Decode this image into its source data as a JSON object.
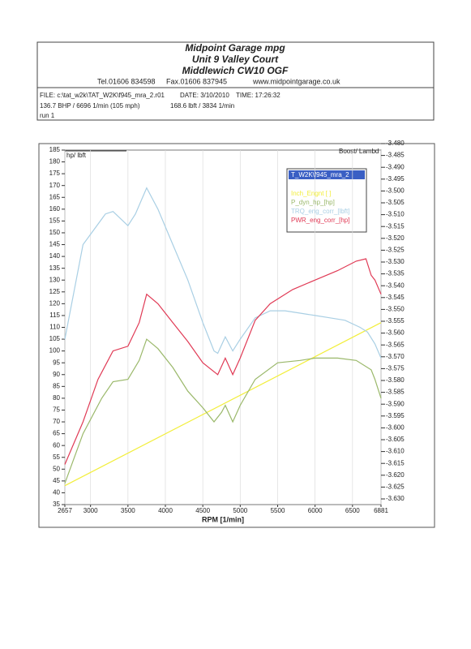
{
  "header": {
    "name": "Midpoint Garage  mpg",
    "address1": "Unit 9 Valley Court",
    "address2": "Middlewich CW10 OGF",
    "tel": "Tel.01606 834598",
    "fax": "Fax.01606 837945",
    "web": "www.midpointgarage.co.uk",
    "file": "FILE: c:\\tat_w2k\\TAT_W2K\\f945_mra_2.r01",
    "date": "DATE: 3/10/2010",
    "time": "TIME: 17:26:32",
    "peak_power": "136.7 BHP / 6696 1/min (105 mph)",
    "peak_torque": "168.6 lbft / 3834 1/min",
    "run": "run  1"
  },
  "chart_data": {
    "type": "line",
    "ylabel": "hp/ lbft",
    "y2label": "Boost/ Lambd",
    "xlabel": "RPM  [1/min]",
    "legend_title": "T_W2K\\f945_mra_2",
    "xlim": [
      2657,
      6881
    ],
    "xticks": [
      2657,
      3000,
      3500,
      4000,
      4500,
      5000,
      5500,
      6000,
      6500,
      6881
    ],
    "ylim": [
      35,
      185
    ],
    "yticks": [
      35,
      40,
      45,
      50,
      55,
      60,
      65,
      70,
      75,
      80,
      85,
      90,
      95,
      100,
      105,
      110,
      115,
      120,
      125,
      130,
      135,
      140,
      145,
      150,
      155,
      160,
      165,
      170,
      175,
      180,
      185
    ],
    "y2lim": [
      -3.63,
      -3.48
    ],
    "y2ticks": [
      {
        "value": -3.48,
        "label": "-3.480"
      },
      {
        "value": -3.485,
        "label": "-3.485"
      },
      {
        "value": -3.49,
        "label": "-3.490"
      },
      {
        "value": -3.495,
        "label": "-3.495"
      },
      {
        "value": -3.5,
        "label": "-3.500"
      },
      {
        "value": -3.505,
        "label": "-3.505"
      },
      {
        "value": -3.51,
        "label": "-3.510"
      },
      {
        "value": -3.515,
        "label": "-3.515"
      },
      {
        "value": -3.52,
        "label": "-3.520"
      },
      {
        "value": -3.525,
        "label": "-3.525"
      },
      {
        "value": -3.53,
        "label": "-3.530"
      },
      {
        "value": -3.535,
        "label": "-3.535"
      },
      {
        "value": -3.54,
        "label": "-3.540"
      },
      {
        "value": -3.545,
        "label": "-3.545"
      },
      {
        "value": -3.55,
        "label": "-3.550"
      },
      {
        "value": -3.555,
        "label": "-3.555"
      },
      {
        "value": -3.56,
        "label": "-3.560"
      },
      {
        "value": -3.565,
        "label": "-3.565"
      },
      {
        "value": -3.57,
        "label": "-3.570"
      },
      {
        "value": -3.575,
        "label": "-3.575"
      },
      {
        "value": -3.58,
        "label": "-3.580"
      },
      {
        "value": -3.585,
        "label": "-3.585"
      },
      {
        "value": -3.59,
        "label": "-3.590"
      },
      {
        "value": -3.595,
        "label": "-3.595"
      },
      {
        "value": -3.6,
        "label": "-3.600"
      },
      {
        "value": -3.605,
        "label": "-3.605"
      },
      {
        "value": -3.61,
        "label": "-3.610"
      },
      {
        "value": -3.615,
        "label": "-3.615"
      },
      {
        "value": -3.62,
        "label": "-3.620"
      },
      {
        "value": -3.625,
        "label": "-3.625"
      },
      {
        "value": -3.63,
        "label": "-3.630"
      }
    ],
    "grid": true,
    "series": [
      {
        "name": "Inch_Engnt [ ]",
        "color": "#f2ee3a",
        "x": [
          2657,
          6881
        ],
        "values": [
          43,
          112
        ]
      },
      {
        "name": "P_dyn_hp_[hp]",
        "color": "#9ab86a",
        "x": [
          2657,
          2900,
          3150,
          3300,
          3500,
          3650,
          3750,
          3900,
          4100,
          4300,
          4500,
          4650,
          4750,
          4800,
          4900,
          5000,
          5200,
          5500,
          5800,
          6000,
          6300,
          6550,
          6750,
          6800,
          6881
        ],
        "values": [
          44,
          65,
          80,
          87,
          88,
          96,
          105,
          101,
          93,
          83,
          76,
          70,
          74,
          77,
          70,
          77,
          88,
          95,
          96,
          97,
          97,
          96,
          92,
          88,
          80
        ]
      },
      {
        "name": "TRQ_eng_corr_[lbft]",
        "color": "#a9cfe4",
        "x": [
          2657,
          2900,
          3200,
          3300,
          3500,
          3600,
          3750,
          3900,
          4100,
          4300,
          4500,
          4650,
          4700,
          4800,
          4900,
          5000,
          5200,
          5400,
          5600,
          5800,
          6000,
          6200,
          6400,
          6600,
          6700,
          6800,
          6881
        ],
        "values": [
          105,
          145,
          158,
          159,
          153,
          158,
          169,
          160,
          145,
          130,
          112,
          100,
          99,
          106,
          100,
          105,
          114,
          117,
          117,
          116,
          115,
          114,
          113,
          110,
          108,
          103,
          97
        ]
      },
      {
        "name": "PWR_eng_corr_[hp]",
        "color": "#e03a55",
        "x": [
          2657,
          2900,
          3100,
          3300,
          3500,
          3650,
          3750,
          3900,
          4100,
          4300,
          4500,
          4700,
          4800,
          4900,
          5000,
          5200,
          5400,
          5700,
          6000,
          6300,
          6550,
          6680,
          6750,
          6800,
          6881
        ],
        "values": [
          52,
          70,
          88,
          100,
          102,
          112,
          124,
          120,
          112,
          104,
          95,
          90,
          97,
          90,
          97,
          113,
          120,
          126,
          130,
          134,
          138,
          139,
          132,
          130,
          124
        ]
      }
    ]
  }
}
